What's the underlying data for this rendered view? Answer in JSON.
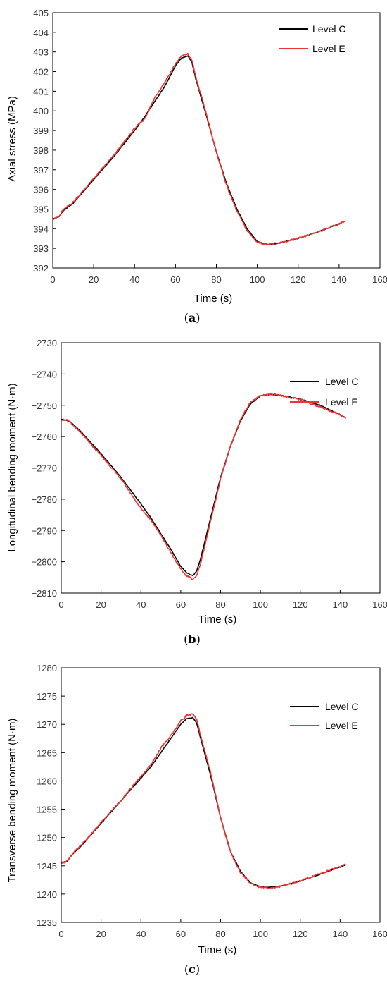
{
  "colors": {
    "level_c": "#000000",
    "level_e": "#ee3333",
    "axis": "#000000"
  },
  "chart_data": [
    {
      "type": "line",
      "panel": "a",
      "caption": "a",
      "xlabel": "Time (s)",
      "ylabel": "Axial stress (MPa)",
      "xlim": [
        0,
        160
      ],
      "ylim": [
        392,
        405
      ],
      "xticks": [
        "0",
        "20",
        "40",
        "60",
        "80",
        "100",
        "120",
        "140",
        "160"
      ],
      "yticks": [
        "392",
        "393",
        "394",
        "395",
        "396",
        "397",
        "398",
        "399",
        "400",
        "401",
        "402",
        "403",
        "404",
        "405"
      ],
      "legend_position": "top-right",
      "series": [
        {
          "name": "Level C",
          "color": "#000000",
          "x": [
            0,
            3,
            5,
            10,
            20,
            30,
            40,
            45,
            50,
            55,
            60,
            63,
            66,
            68,
            70,
            75,
            80,
            85,
            90,
            95,
            100,
            105,
            110,
            120,
            130,
            140,
            143
          ],
          "y": [
            394.5,
            394.6,
            394.9,
            395.3,
            396.5,
            397.7,
            399.0,
            399.7,
            400.5,
            401.3,
            402.3,
            402.7,
            402.8,
            402.5,
            401.6,
            399.8,
            397.9,
            396.3,
            395.0,
            394.0,
            393.35,
            393.2,
            393.25,
            393.5,
            393.85,
            394.25,
            394.4
          ]
        },
        {
          "name": "Level E",
          "color": "#ee3333",
          "x": [
            0,
            3,
            5,
            10,
            20,
            30,
            40,
            45,
            50,
            55,
            60,
            63,
            66,
            68,
            70,
            75,
            80,
            85,
            90,
            95,
            100,
            105,
            110,
            120,
            130,
            140,
            143
          ],
          "y": [
            394.5,
            394.6,
            394.95,
            395.35,
            396.55,
            397.75,
            399.1,
            399.6,
            400.7,
            401.5,
            402.4,
            402.8,
            402.9,
            402.6,
            401.7,
            399.9,
            397.9,
            396.2,
            394.9,
            393.9,
            393.3,
            393.2,
            393.25,
            393.5,
            393.85,
            394.25,
            394.4
          ]
        }
      ]
    },
    {
      "type": "line",
      "panel": "b",
      "caption": "b",
      "xlabel": "Time (s)",
      "ylabel": "Longitudinal bending moment (N·m)",
      "xlim": [
        0,
        160
      ],
      "ylim": [
        -2810,
        -2730
      ],
      "xticks": [
        "0",
        "20",
        "40",
        "60",
        "80",
        "100",
        "120",
        "140",
        "160"
      ],
      "yticks": [
        "−2810",
        "−2800",
        "−2790",
        "−2780",
        "−2770",
        "−2760",
        "−2750",
        "−2740",
        "−2730"
      ],
      "legend_position": "top-right",
      "series": [
        {
          "name": "Level C",
          "color": "#000000",
          "x": [
            0,
            3,
            5,
            10,
            20,
            30,
            40,
            45,
            50,
            55,
            60,
            63,
            66,
            68,
            70,
            75,
            80,
            85,
            90,
            95,
            100,
            105,
            110,
            120,
            130,
            140,
            143
          ],
          "y": [
            -2754.5,
            -2754.8,
            -2755.5,
            -2758.5,
            -2765.5,
            -2773.0,
            -2781.5,
            -2786.0,
            -2791.0,
            -2796.0,
            -2801.5,
            -2803.5,
            -2804.5,
            -2803.0,
            -2799.0,
            -2786.0,
            -2773.0,
            -2763.0,
            -2755.0,
            -2749.5,
            -2747.0,
            -2746.5,
            -2746.8,
            -2748.0,
            -2750.0,
            -2753.0,
            -2754.0
          ]
        },
        {
          "name": "Level E",
          "color": "#ee3333",
          "x": [
            0,
            3,
            5,
            10,
            20,
            30,
            40,
            45,
            50,
            55,
            60,
            63,
            66,
            68,
            70,
            75,
            80,
            85,
            90,
            95,
            100,
            105,
            110,
            120,
            130,
            140,
            143
          ],
          "y": [
            -2754.5,
            -2754.8,
            -2755.8,
            -2759.0,
            -2766.0,
            -2773.5,
            -2783.0,
            -2786.5,
            -2791.5,
            -2797.0,
            -2802.5,
            -2804.5,
            -2805.5,
            -2804.5,
            -2800.5,
            -2787.0,
            -2773.5,
            -2763.0,
            -2754.5,
            -2749.0,
            -2747.0,
            -2746.5,
            -2746.8,
            -2748.2,
            -2750.5,
            -2753.0,
            -2754.2
          ]
        }
      ]
    },
    {
      "type": "line",
      "panel": "c",
      "caption": "c",
      "xlabel": "Time (s)",
      "ylabel": "Transverse bending moment (N·m)",
      "xlim": [
        0,
        160
      ],
      "ylim": [
        1235,
        1280
      ],
      "xticks": [
        "0",
        "20",
        "40",
        "60",
        "80",
        "100",
        "120",
        "140",
        "160"
      ],
      "yticks": [
        "1235",
        "1240",
        "1245",
        "1250",
        "1255",
        "1260",
        "1265",
        "1270",
        "1275",
        "1280"
      ],
      "legend_position": "top-right",
      "series": [
        {
          "name": "Level C",
          "color": "#000000",
          "x": [
            0,
            3,
            5,
            10,
            20,
            30,
            40,
            45,
            50,
            55,
            60,
            63,
            66,
            68,
            70,
            75,
            80,
            85,
            90,
            95,
            100,
            105,
            110,
            120,
            130,
            140,
            143
          ],
          "y": [
            1245.5,
            1245.8,
            1246.8,
            1248.5,
            1252.5,
            1256.5,
            1260.5,
            1262.5,
            1265.0,
            1267.5,
            1270.0,
            1271.0,
            1271.2,
            1270.2,
            1267.5,
            1261.0,
            1253.5,
            1247.5,
            1244.0,
            1242.0,
            1241.3,
            1241.2,
            1241.4,
            1242.3,
            1243.5,
            1244.8,
            1245.2
          ]
        },
        {
          "name": "Level E",
          "color": "#ee3333",
          "x": [
            0,
            3,
            5,
            10,
            20,
            30,
            40,
            45,
            50,
            55,
            60,
            63,
            66,
            68,
            70,
            75,
            80,
            85,
            90,
            95,
            100,
            105,
            110,
            120,
            130,
            140,
            143
          ],
          "y": [
            1245.5,
            1245.8,
            1246.9,
            1248.6,
            1252.6,
            1256.6,
            1260.8,
            1262.8,
            1265.8,
            1268.0,
            1270.6,
            1271.6,
            1271.8,
            1270.8,
            1268.0,
            1261.5,
            1253.5,
            1247.3,
            1243.8,
            1241.9,
            1241.2,
            1241.1,
            1241.3,
            1242.3,
            1243.6,
            1244.9,
            1245.3
          ]
        }
      ]
    }
  ]
}
